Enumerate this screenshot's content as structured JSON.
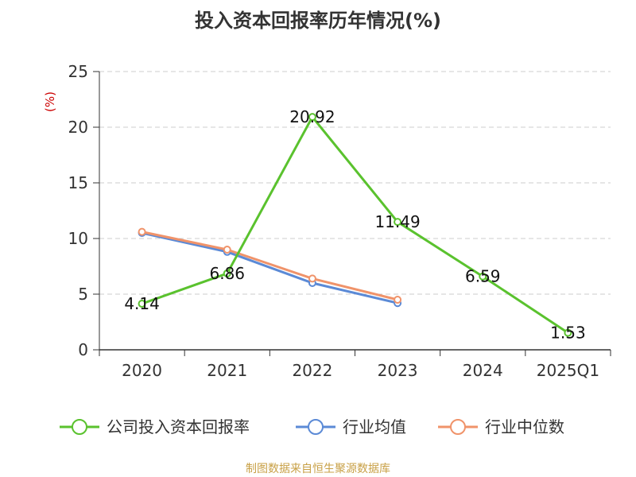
{
  "chart_data": {
    "type": "line",
    "title": "投入资本回报率历年情况(%)",
    "ylabel": "(%)",
    "xlabel": "",
    "categories": [
      "2020",
      "2021",
      "2022",
      "2023",
      "2024",
      "2025Q1"
    ],
    "ylim": [
      0,
      25
    ],
    "yticks": [
      0,
      5,
      10,
      15,
      20,
      25
    ],
    "grid": true,
    "legend_position": "bottom",
    "series": [
      {
        "name": "公司投入资本回报率",
        "color": "#5ac22e",
        "values": [
          4.14,
          6.86,
          20.92,
          11.49,
          6.59,
          1.53
        ],
        "labels": [
          "4.14",
          "6.86",
          "20.92",
          "11.49",
          "6.59",
          "1.53"
        ]
      },
      {
        "name": "行业均值",
        "color": "#5b8ad6",
        "values": [
          10.5,
          8.8,
          6.0,
          4.2,
          null,
          null
        ]
      },
      {
        "name": "行业中位数",
        "color": "#f0936a",
        "values": [
          10.6,
          9.0,
          6.4,
          4.5,
          null,
          null
        ]
      }
    ]
  },
  "source_note": "制图数据来自恒生聚源数据库",
  "colors": {
    "unit_label": "#cc0000",
    "axis": "#333333",
    "grid": "#cccccc"
  }
}
